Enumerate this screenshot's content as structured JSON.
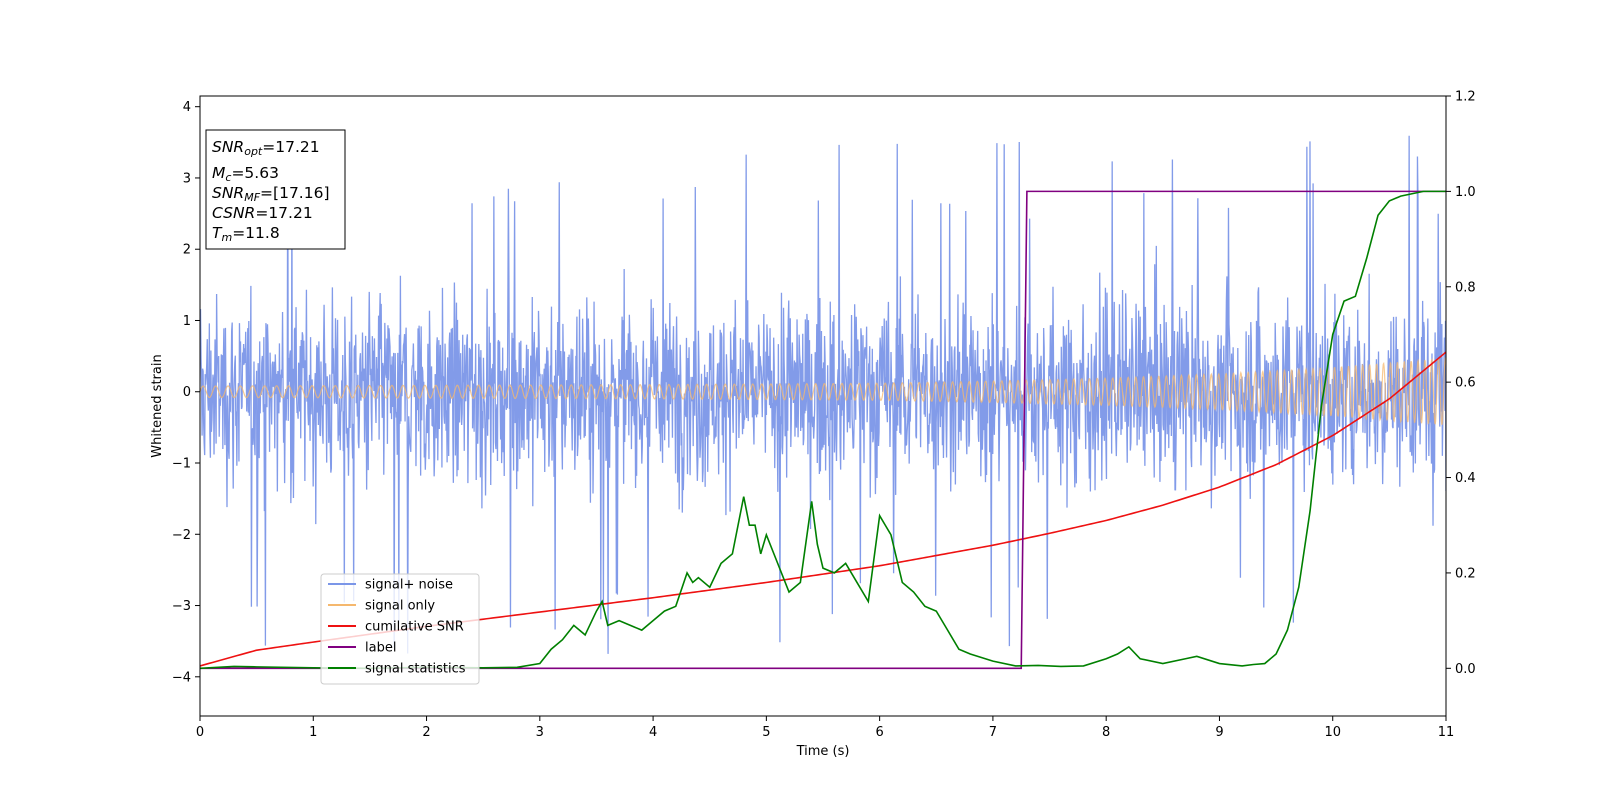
{
  "chart_data": {
    "type": "line",
    "title": "",
    "xlabel": "Time (s)",
    "ylabel": "Whitened strain",
    "xlim": [
      0,
      11
    ],
    "ylim_left": [
      -4.55,
      4.15
    ],
    "ylim_right": [
      -0.1,
      1.2
    ],
    "x_ticks": [
      0,
      1,
      2,
      3,
      4,
      5,
      6,
      7,
      8,
      9,
      10,
      11
    ],
    "y_ticks_left": [
      4,
      3,
      2,
      1,
      0,
      -1,
      -2,
      -3,
      -4
    ],
    "y_tick_labels_left": [
      "4",
      "3",
      "2",
      "1",
      "0",
      "−1",
      "−2",
      "−3",
      "−4"
    ],
    "y_ticks_right": [
      1.2,
      1.0,
      0.8,
      0.6,
      0.4,
      0.2,
      0.0
    ],
    "y_tick_labels_right": [
      "1.2",
      "1.0",
      "0.8",
      "0.6",
      "0.4",
      "0.2",
      "0.0"
    ],
    "grid": false,
    "legend_position": "lower-left",
    "info_box": {
      "snr_opt": {
        "label": "SNR",
        "sub": "opt",
        "value": "=17.21"
      },
      "mc": {
        "label": "M",
        "sub": "c",
        "value": "=5.63"
      },
      "snr_mf": {
        "label": "SNR",
        "sub": "MF",
        "value": "=[17.16]"
      },
      "csnr": {
        "label": "CSNR",
        "value": "=17.21"
      },
      "tm": {
        "label": "T",
        "sub": "m",
        "value": "=11.8"
      }
    },
    "series": [
      {
        "name": "signal+ noise",
        "axis": "left",
        "color": "#7b96e8",
        "description_values": "whitened noise, roughly between -3.2 and 3.8, amplitude ~±1.6 with occasional spikes",
        "envelope": {
          "x": [
            0,
            11
          ],
          "typical_abs": 1.7,
          "max_abs": 3.8
        }
      },
      {
        "name": "signal only",
        "axis": "left",
        "color": "#f5b86e",
        "envelope": {
          "x": [
            0,
            2,
            4,
            6,
            7,
            8,
            9,
            10,
            11
          ],
          "amplitude": [
            0.08,
            0.09,
            0.1,
            0.12,
            0.15,
            0.19,
            0.25,
            0.34,
            0.47
          ]
        }
      },
      {
        "name": "cumilative SNR",
        "axis": "right",
        "color": "#ee1111",
        "x": [
          0,
          0.5,
          1,
          2,
          3,
          4,
          5,
          6,
          7,
          7.5,
          8,
          8.5,
          9,
          9.5,
          10,
          10.5,
          11
        ],
        "y": [
          0.005,
          0.038,
          0.055,
          0.088,
          0.118,
          0.148,
          0.18,
          0.215,
          0.258,
          0.283,
          0.31,
          0.342,
          0.38,
          0.427,
          0.488,
          0.565,
          0.663
        ]
      },
      {
        "name": "label",
        "axis": "right",
        "color": "#800080",
        "x": [
          0,
          7.25,
          7.3,
          11
        ],
        "y": [
          0,
          0,
          1,
          1
        ]
      },
      {
        "name": "signal statistics",
        "axis": "right",
        "color": "#008000",
        "x": [
          0,
          0.3,
          0.5,
          1.0,
          1.5,
          2.0,
          2.5,
          2.8,
          3.0,
          3.1,
          3.2,
          3.3,
          3.4,
          3.5,
          3.55,
          3.6,
          3.7,
          3.9,
          4.0,
          4.1,
          4.2,
          4.3,
          4.35,
          4.4,
          4.5,
          4.6,
          4.7,
          4.8,
          4.85,
          4.9,
          4.95,
          5.0,
          5.1,
          5.2,
          5.3,
          5.4,
          5.45,
          5.5,
          5.6,
          5.7,
          5.8,
          5.9,
          6.0,
          6.05,
          6.1,
          6.2,
          6.3,
          6.4,
          6.5,
          6.6,
          6.7,
          6.8,
          7.0,
          7.2,
          7.4,
          7.6,
          7.8,
          8.0,
          8.1,
          8.2,
          8.3,
          8.5,
          8.7,
          8.8,
          9.0,
          9.2,
          9.3,
          9.4,
          9.5,
          9.6,
          9.7,
          9.8,
          9.9,
          10.0,
          10.1,
          10.2,
          10.3,
          10.4,
          10.5,
          10.6,
          10.8,
          11.0
        ],
        "y": [
          0.0,
          0.004,
          0.003,
          0.001,
          0.0,
          0.002,
          0.001,
          0.002,
          0.01,
          0.04,
          0.06,
          0.09,
          0.07,
          0.12,
          0.14,
          0.09,
          0.1,
          0.08,
          0.1,
          0.12,
          0.13,
          0.2,
          0.18,
          0.19,
          0.17,
          0.22,
          0.24,
          0.36,
          0.3,
          0.3,
          0.24,
          0.28,
          0.22,
          0.16,
          0.18,
          0.35,
          0.26,
          0.21,
          0.2,
          0.22,
          0.18,
          0.14,
          0.32,
          0.3,
          0.28,
          0.18,
          0.16,
          0.13,
          0.12,
          0.08,
          0.04,
          0.03,
          0.015,
          0.005,
          0.006,
          0.004,
          0.005,
          0.02,
          0.03,
          0.045,
          0.02,
          0.01,
          0.02,
          0.025,
          0.01,
          0.005,
          0.008,
          0.01,
          0.03,
          0.08,
          0.17,
          0.33,
          0.55,
          0.7,
          0.77,
          0.78,
          0.86,
          0.95,
          0.98,
          0.99,
          1.0,
          1.0
        ]
      }
    ]
  }
}
